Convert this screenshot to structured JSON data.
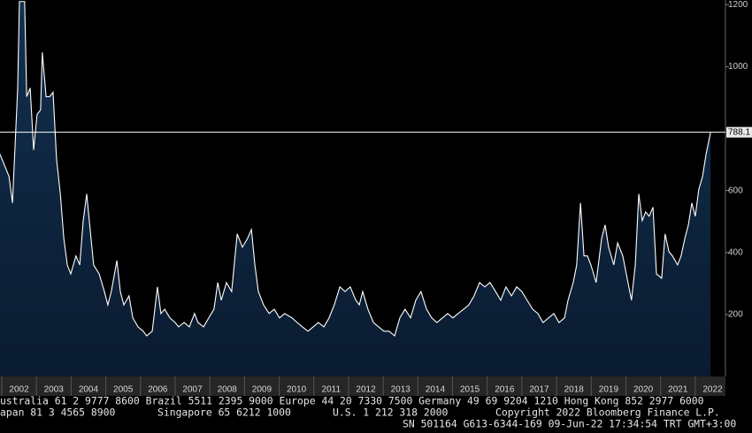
{
  "chart_data": {
    "type": "area",
    "x": [
      2001.95,
      2002.21,
      2002.31,
      2002.46,
      2002.51,
      2002.66,
      2002.72,
      2002.82,
      2002.92,
      2003.02,
      2003.12,
      2003.17,
      2003.28,
      2003.38,
      2003.48,
      2003.58,
      2003.69,
      2003.79,
      2003.89,
      2003.99,
      2004.14,
      2004.25,
      2004.35,
      2004.45,
      2004.55,
      2004.65,
      2004.81,
      2004.96,
      2005.06,
      2005.16,
      2005.32,
      2005.42,
      2005.52,
      2005.67,
      2005.78,
      2005.93,
      2006.08,
      2006.18,
      2006.34,
      2006.49,
      2006.59,
      2006.7,
      2006.85,
      2007.0,
      2007.1,
      2007.26,
      2007.41,
      2007.56,
      2007.66,
      2007.82,
      2007.97,
      2008.12,
      2008.23,
      2008.33,
      2008.48,
      2008.63,
      2008.79,
      2008.94,
      2009.09,
      2009.2,
      2009.3,
      2009.4,
      2009.55,
      2009.71,
      2009.86,
      2010.01,
      2010.16,
      2010.37,
      2010.52,
      2010.67,
      2010.83,
      2010.98,
      2011.13,
      2011.29,
      2011.44,
      2011.59,
      2011.75,
      2011.9,
      2012.05,
      2012.21,
      2012.31,
      2012.41,
      2012.56,
      2012.72,
      2012.87,
      2013.02,
      2013.17,
      2013.33,
      2013.48,
      2013.63,
      2013.79,
      2013.94,
      2014.09,
      2014.25,
      2014.4,
      2014.55,
      2014.71,
      2014.86,
      2015.01,
      2015.16,
      2015.32,
      2015.47,
      2015.62,
      2015.78,
      2015.93,
      2016.08,
      2016.24,
      2016.39,
      2016.54,
      2016.7,
      2016.85,
      2017.0,
      2017.15,
      2017.31,
      2017.46,
      2017.61,
      2017.77,
      2017.92,
      2018.07,
      2018.23,
      2018.33,
      2018.48,
      2018.58,
      2018.69,
      2018.79,
      2018.89,
      2018.99,
      2019.14,
      2019.3,
      2019.4,
      2019.5,
      2019.65,
      2019.76,
      2019.91,
      2020.01,
      2020.16,
      2020.27,
      2020.37,
      2020.47,
      2020.57,
      2020.67,
      2020.78,
      2020.88,
      2021.03,
      2021.13,
      2021.24,
      2021.34,
      2021.49,
      2021.59,
      2021.7,
      2021.8,
      2021.9,
      2022.0,
      2022.1,
      2022.21,
      2022.31,
      2022.44
    ],
    "values": [
      717,
      646,
      560,
      931,
      1210,
      1210,
      903,
      931,
      731,
      846,
      860,
      1046,
      903,
      903,
      917,
      703,
      589,
      446,
      360,
      331,
      389,
      360,
      503,
      589,
      474,
      360,
      331,
      274,
      231,
      274,
      374,
      274,
      231,
      260,
      189,
      160,
      146,
      131,
      146,
      289,
      203,
      217,
      189,
      174,
      160,
      174,
      160,
      203,
      174,
      160,
      189,
      217,
      303,
      246,
      303,
      274,
      460,
      417,
      446,
      474,
      360,
      274,
      231,
      203,
      217,
      189,
      203,
      189,
      174,
      160,
      146,
      160,
      174,
      160,
      189,
      231,
      289,
      274,
      289,
      246,
      231,
      274,
      217,
      174,
      160,
      146,
      146,
      131,
      189,
      217,
      189,
      246,
      274,
      217,
      189,
      174,
      189,
      203,
      189,
      203,
      217,
      231,
      260,
      303,
      289,
      303,
      274,
      246,
      289,
      260,
      289,
      274,
      246,
      217,
      203,
      174,
      189,
      203,
      174,
      189,
      246,
      303,
      360,
      560,
      389,
      389,
      360,
      303,
      446,
      489,
      417,
      360,
      431,
      389,
      331,
      246,
      360,
      589,
      503,
      531,
      517,
      546,
      331,
      317,
      460,
      403,
      389,
      360,
      389,
      446,
      489,
      560,
      517,
      603,
      646,
      717,
      788.1
    ],
    "color": "#ffffff",
    "fill": "#0d2440",
    "last_value": 788.1,
    "xlim": [
      2001.95,
      2022.87
    ],
    "xticks": [
      2002,
      2003,
      2004,
      2005,
      2006,
      2007,
      2008,
      2009,
      2010,
      2011,
      2012,
      2013,
      2014,
      2015,
      2016,
      2017,
      2018,
      2019,
      2020,
      2021,
      2022
    ],
    "ylim": [
      0,
      1215
    ],
    "yticks": [
      200,
      400,
      600,
      1000,
      1200
    ],
    "grid": false,
    "footer": {
      "line1": "ustralia 61 2 9777 8600 Brazil 5511 2395 9000 Europe 44 20 7330 7500 Germany 49 69 9204 1210 Hong Kong 852 2977 6000",
      "line2": [
        "apan 81 3 4565 8900",
        "Singapore 65 6212 1000",
        "U.S. 1 212 318 2000",
        "Copyright 2022 Bloomberg Finance L.P."
      ],
      "line3": "SN 501164 G613-6344-169 09-Jun-22 17:34:54 TRT  GMT+3:00"
    }
  }
}
